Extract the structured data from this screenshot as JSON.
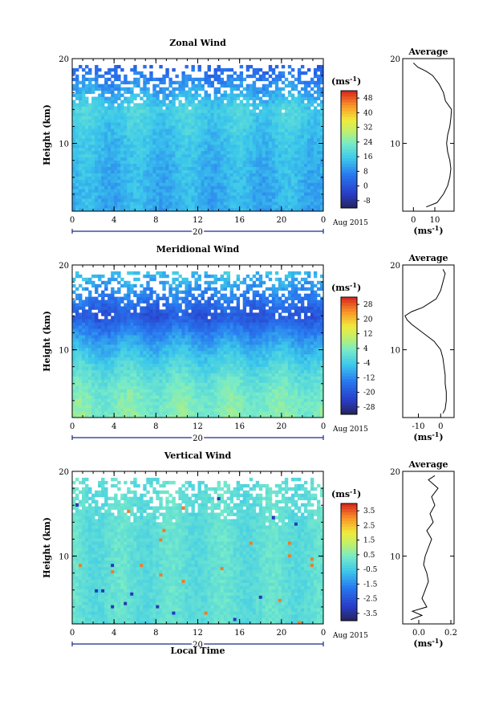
{
  "chart_data": [
    {
      "type": "heatmap",
      "title": "Zonal Wind",
      "ylabel": "Height (km)",
      "xlabel": "",
      "x_ticks": [
        "0",
        "4",
        "8",
        "12",
        "16",
        "20",
        "0"
      ],
      "y_ticks": [
        "10",
        "20"
      ],
      "ylim": [
        2,
        20
      ],
      "xlim": [
        0,
        24
      ],
      "date_label": "20",
      "date_suffix": "Aug 2015",
      "colorbar": {
        "unit": "(ms",
        "unit_exp": "-1",
        "unit_close": ")",
        "ticks": [
          "48",
          "40",
          "32",
          "24",
          "16",
          "8",
          "0",
          "-8"
        ],
        "range": [
          -12,
          52
        ]
      },
      "field": {
        "base": 15,
        "jet_height": 14,
        "jet_value": 17,
        "top_value": 3,
        "bottom_value": 12
      },
      "profile": {
        "title": "Average",
        "x_ticks": [
          "0",
          "10"
        ],
        "x_tick_values": [
          0,
          10
        ],
        "xlim": [
          -5,
          19
        ],
        "unit": "(ms",
        "unit_exp": "-1",
        "unit_close": ")",
        "heights": [
          2.5,
          3,
          4,
          5,
          6,
          7,
          8,
          9,
          10,
          11,
          12,
          13,
          14,
          15,
          16,
          17,
          18,
          18.5,
          19,
          19.5
        ],
        "values": [
          6,
          11,
          14,
          16,
          17,
          17.5,
          17,
          16,
          15.5,
          16,
          17,
          17.5,
          17.8,
          15,
          14,
          12,
          9,
          6,
          2,
          0
        ]
      }
    },
    {
      "type": "heatmap",
      "title": "Meridional Wind",
      "ylabel": "Height (km)",
      "xlabel": "",
      "x_ticks": [
        "0",
        "4",
        "8",
        "12",
        "16",
        "20",
        "0"
      ],
      "y_ticks": [
        "10",
        "20"
      ],
      "ylim": [
        2,
        20
      ],
      "xlim": [
        0,
        24
      ],
      "date_label": "20",
      "date_suffix": "Aug 2015",
      "colorbar": {
        "unit": "(ms",
        "unit_exp": "-1",
        "unit_close": ")",
        "ticks": [
          "28",
          "20",
          "12",
          "4",
          "-4",
          "-12",
          "-20",
          "-28"
        ],
        "range": [
          -32,
          32
        ]
      },
      "field": {
        "base": 3,
        "jet_height": 14,
        "jet_value": -20,
        "top_value": -6,
        "bottom_value": 4
      },
      "profile": {
        "title": "Average",
        "x_ticks": [
          "-10",
          "0"
        ],
        "x_tick_values": [
          -10,
          0
        ],
        "xlim": [
          -17,
          6
        ],
        "unit": "(ms",
        "unit_exp": "-1",
        "unit_close": ")",
        "heights": [
          2.5,
          3,
          4,
          5,
          6,
          7,
          8,
          9,
          10,
          11,
          12,
          13,
          13.5,
          14,
          14.5,
          15,
          16,
          17,
          18,
          19,
          19.5
        ],
        "values": [
          1,
          2,
          2.5,
          2.5,
          2,
          2,
          1.5,
          1,
          0,
          -3,
          -8,
          -13,
          -15,
          -16,
          -13,
          -8,
          -2,
          0,
          1,
          2,
          1
        ]
      }
    },
    {
      "type": "heatmap",
      "title": "Vertical Wind",
      "ylabel": "Height (km)",
      "xlabel": "Local Time",
      "x_ticks": [
        "0",
        "4",
        "8",
        "12",
        "16",
        "20",
        "0"
      ],
      "y_ticks": [
        "10",
        "20"
      ],
      "ylim": [
        2,
        20
      ],
      "xlim": [
        0,
        24
      ],
      "date_label": "20",
      "date_suffix": "Aug 2015",
      "colorbar": {
        "unit": "(ms",
        "unit_exp": "-1",
        "unit_close": ")",
        "ticks": [
          "3.5",
          "2.5",
          "1.5",
          "0.5",
          "-0.5",
          "-1.5",
          "-2.5",
          "-3.5"
        ],
        "range": [
          -4,
          4
        ]
      },
      "field": {
        "base": 0,
        "jet_height": 14,
        "jet_value": 0,
        "top_value": 0,
        "bottom_value": 0
      },
      "profile": {
        "title": "Average",
        "x_ticks": [
          "0.0",
          "0.2"
        ],
        "x_tick_values": [
          0.0,
          0.2
        ],
        "xlim": [
          -0.1,
          0.22
        ],
        "unit": "(ms",
        "unit_exp": "-1",
        "unit_close": ")",
        "heights": [
          2.5,
          3,
          3.5,
          4,
          5,
          6,
          7,
          8,
          9,
          10,
          11,
          12,
          13,
          14,
          15,
          16,
          17,
          18,
          19,
          19.5
        ],
        "values": [
          -0.05,
          0.02,
          -0.04,
          0.05,
          0.02,
          0.04,
          0.06,
          0.05,
          0.03,
          0.04,
          0.06,
          0.08,
          0.05,
          0.09,
          0.07,
          0.1,
          0.08,
          0.12,
          0.06,
          0.1
        ]
      }
    }
  ]
}
